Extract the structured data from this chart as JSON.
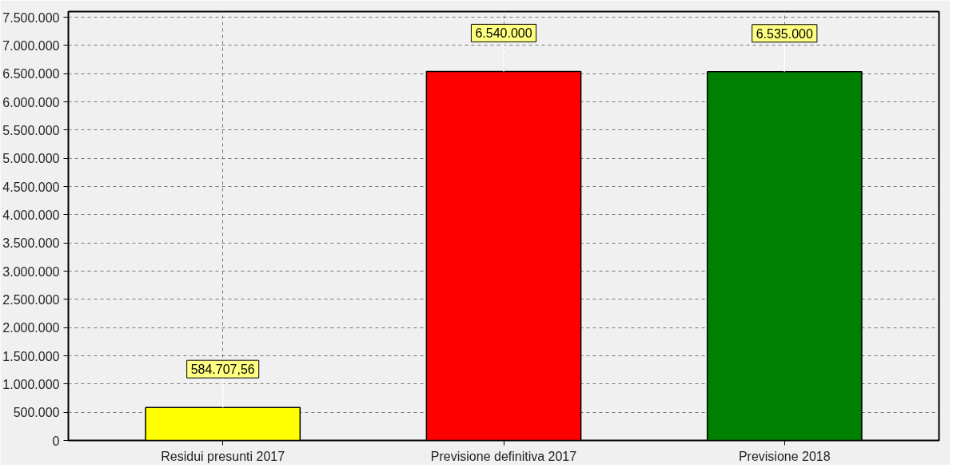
{
  "chart_data": {
    "type": "bar",
    "categories": [
      "Residui presunti 2017",
      "Previsione definitiva 2017",
      "Previsione 2018"
    ],
    "values": [
      584707.56,
      6540000,
      6535000
    ],
    "colors": [
      "#ffff00",
      "#ff0000",
      "#008000"
    ],
    "value_labels": [
      "584.707,56",
      "6.540.000",
      "6.535.000"
    ],
    "ylim": [
      0,
      7600000
    ],
    "yticks": [
      {
        "value": 0,
        "label": "0"
      },
      {
        "value": 500000,
        "label": "500.000"
      },
      {
        "value": 1000000,
        "label": "1.000.000"
      },
      {
        "value": 1500000,
        "label": "1.500.000"
      },
      {
        "value": 2000000,
        "label": "2.000.000"
      },
      {
        "value": 2500000,
        "label": "2.500.000"
      },
      {
        "value": 3000000,
        "label": "3.000.000"
      },
      {
        "value": 3500000,
        "label": "3.500.000"
      },
      {
        "value": 4000000,
        "label": "4.000.000"
      },
      {
        "value": 4500000,
        "label": "4.500.000"
      },
      {
        "value": 5000000,
        "label": "5.000.000"
      },
      {
        "value": 5500000,
        "label": "5.500.000"
      },
      {
        "value": 6000000,
        "label": "6.000.000"
      },
      {
        "value": 6500000,
        "label": "6.500.000"
      },
      {
        "value": 7000000,
        "label": "7.000.000"
      },
      {
        "value": 7500000,
        "label": "7.500.000"
      }
    ],
    "grid": true
  }
}
